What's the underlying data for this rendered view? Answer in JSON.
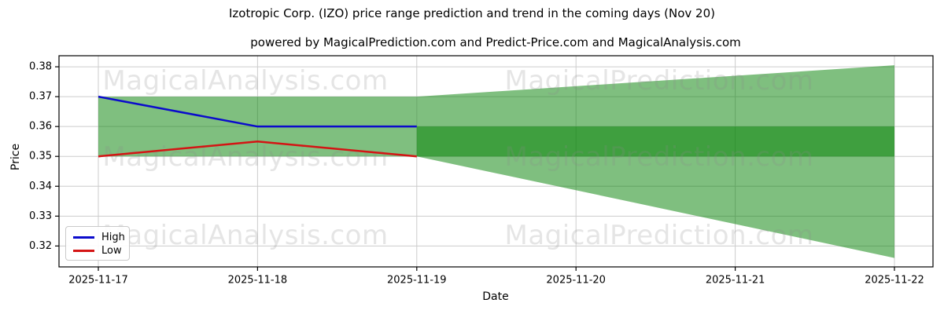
{
  "chart_data": {
    "type": "area",
    "title": "Izotropic Corp. (IZO) price range prediction and trend in the coming days (Nov 20)",
    "subtitle": "powered by MagicalPrediction.com and Predict-Price.com and MagicalAnalysis.com",
    "xlabel": "Date",
    "ylabel": "Price",
    "x": [
      "2025-11-17",
      "2025-11-18",
      "2025-11-19",
      "2025-11-20",
      "2025-11-21",
      "2025-11-22"
    ],
    "y_ticks": [
      "0.32",
      "0.33",
      "0.34",
      "0.35",
      "0.36",
      "0.37",
      "0.38"
    ],
    "ylim": [
      0.313,
      0.3837
    ],
    "grid": true,
    "series": [
      {
        "name": "High",
        "color": "#0b0bcc",
        "x": [
          "2025-11-17",
          "2025-11-18",
          "2025-11-19"
        ],
        "values": [
          0.37,
          0.36,
          0.36
        ]
      },
      {
        "name": "Low",
        "color": "#d41414",
        "x": [
          "2025-11-17",
          "2025-11-18",
          "2025-11-19"
        ],
        "values": [
          0.35,
          0.355,
          0.35
        ]
      }
    ],
    "bands": [
      {
        "name": "historical-range",
        "x": [
          "2025-11-17",
          "2025-11-19"
        ],
        "upper": [
          0.37,
          0.37
        ],
        "lower": [
          0.35,
          0.35
        ],
        "fill": "#008000",
        "alpha": 0.5
      },
      {
        "name": "prediction-fan",
        "x": [
          "2025-11-19",
          "2025-11-22"
        ],
        "upper": [
          0.37,
          0.3805
        ],
        "lower": [
          0.35,
          0.316
        ],
        "fill": "#008000",
        "alpha": 0.5
      },
      {
        "name": "prediction-overlap-band",
        "x": [
          "2025-11-19",
          "2025-11-22"
        ],
        "upper": [
          0.36,
          0.36
        ],
        "lower": [
          0.35,
          0.35
        ],
        "fill": "#008000",
        "alpha": 0.5
      }
    ],
    "legend": {
      "position": "lower left",
      "items": [
        {
          "label": "High",
          "color": "#0b0bcc"
        },
        {
          "label": "Low",
          "color": "#d41414"
        }
      ]
    },
    "watermarks": {
      "left_text": "MagicalAnalysis.com",
      "right_text": "MagicalPrediction.com",
      "color": "#8a8a8a"
    },
    "colors": {
      "band_single_layer": "#84c284",
      "band_overlap": "#40a040",
      "gridline": "#cccccc",
      "axis": "#000000",
      "background": "#ffffff"
    }
  }
}
